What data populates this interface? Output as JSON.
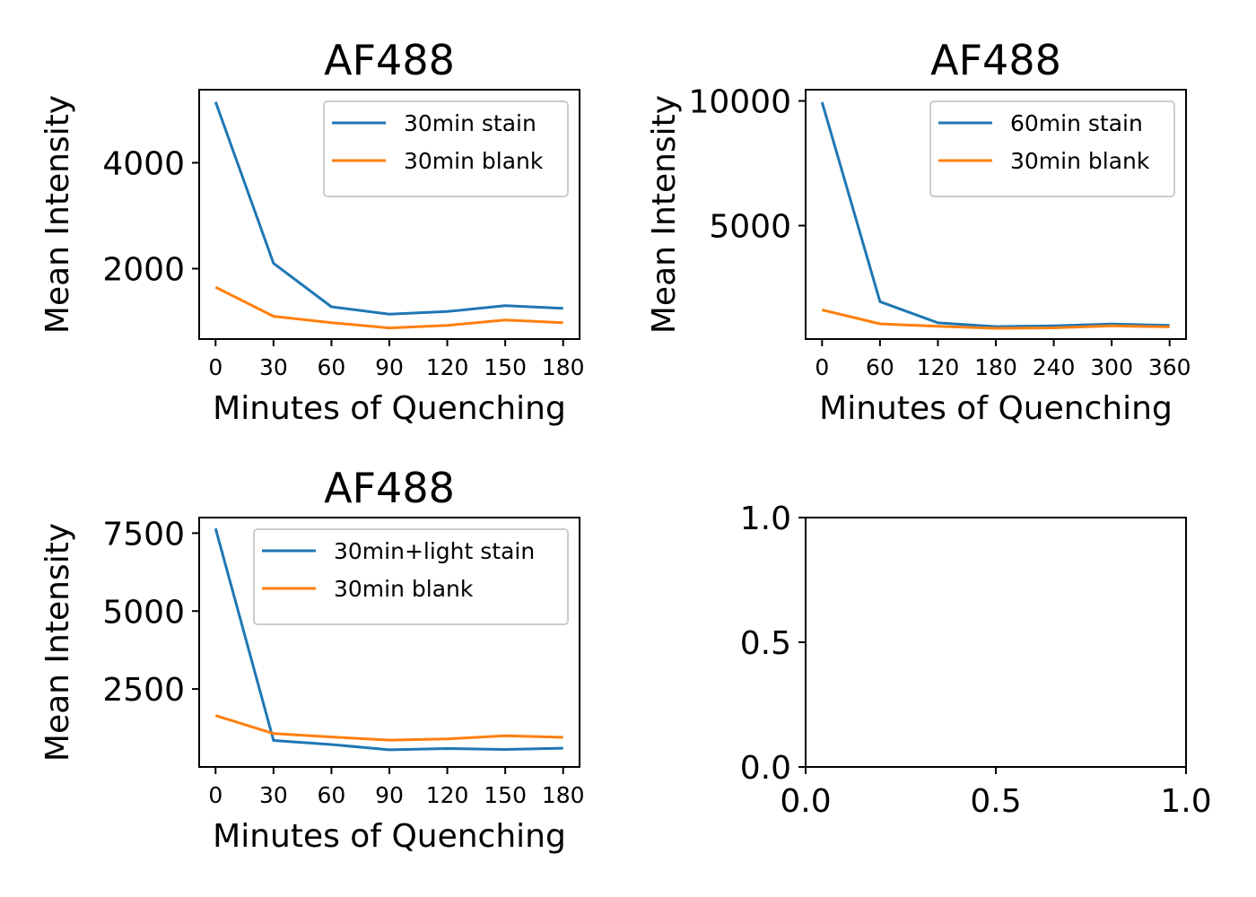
{
  "colors": {
    "series1": "#1f77b4",
    "series2": "#ff7f0e",
    "axes": "#000000",
    "legend_border": "#cccccc"
  },
  "chart_data": [
    {
      "type": "line",
      "title": "AF488",
      "xlabel": "Minutes of Quenching",
      "ylabel": "Mean Intensity",
      "x": [
        0,
        30,
        60,
        90,
        120,
        150,
        180
      ],
      "xticks": [
        "0",
        "30",
        "60",
        "90",
        "120",
        "150",
        "180"
      ],
      "xlim": [
        -8.5,
        188.5
      ],
      "yticks": [
        "2000",
        "4000"
      ],
      "ytick_values": [
        2000,
        4000
      ],
      "ylim": [
        670,
        5380
      ],
      "legend": "top-right",
      "series": [
        {
          "name": "30min stain",
          "values": [
            5150,
            2100,
            1280,
            1140,
            1190,
            1300,
            1250
          ]
        },
        {
          "name": "30min blank",
          "values": [
            1650,
            1100,
            980,
            880,
            930,
            1030,
            980
          ]
        }
      ]
    },
    {
      "type": "line",
      "title": "AF488",
      "xlabel": "Minutes of Quenching",
      "ylabel": "Mean Intensity",
      "x": [
        0,
        60,
        120,
        180,
        240,
        300,
        360
      ],
      "xticks": [
        "0",
        "60",
        "120",
        "180",
        "240",
        "300",
        "360"
      ],
      "xlim": [
        -17,
        377
      ],
      "yticks": [
        "5000",
        "10000"
      ],
      "ytick_values": [
        5000,
        10000
      ],
      "ylim": [
        450,
        10450
      ],
      "legend": "top-right",
      "series": [
        {
          "name": "60min stain",
          "values": [
            9950,
            1950,
            1100,
            950,
            980,
            1050,
            1000
          ]
        },
        {
          "name": "30min blank",
          "values": [
            1620,
            1060,
            960,
            880,
            900,
            980,
            940
          ]
        }
      ]
    },
    {
      "type": "line",
      "title": "AF488",
      "xlabel": "Minutes of Quenching",
      "ylabel": "Mean Intensity",
      "x": [
        0,
        30,
        60,
        90,
        120,
        150,
        180
      ],
      "xticks": [
        "0",
        "30",
        "60",
        "90",
        "120",
        "150",
        "180"
      ],
      "xlim": [
        -8.5,
        188.5
      ],
      "yticks": [
        "2500",
        "5000",
        "7500"
      ],
      "ytick_values": [
        2500,
        5000,
        7500
      ],
      "ylim": [
        0,
        8000
      ],
      "legend": "top-right",
      "series": [
        {
          "name": "30min+light stain",
          "values": [
            7650,
            850,
            720,
            550,
            590,
            560,
            600
          ]
        },
        {
          "name": "30min blank",
          "values": [
            1650,
            1070,
            960,
            860,
            900,
            1000,
            950
          ]
        }
      ]
    },
    {
      "type": "line",
      "title": "",
      "xlabel": "",
      "ylabel": "",
      "x": [],
      "xticks": [
        "0.0",
        "0.5",
        "1.0"
      ],
      "xtick_values": [
        0,
        0.5,
        1
      ],
      "xlim": [
        0,
        1
      ],
      "yticks": [
        "0.0",
        "0.5",
        "1.0"
      ],
      "ytick_values": [
        0,
        0.5,
        1
      ],
      "ylim": [
        0,
        1
      ],
      "series": []
    }
  ]
}
